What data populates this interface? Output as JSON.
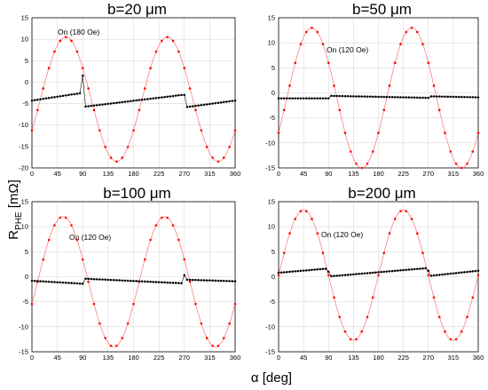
{
  "figure": {
    "ylabel": "R_PHE [mΩ]",
    "ylabel_main": "R",
    "ylabel_sub": "PHE",
    "ylabel_unit": " [mΩ]",
    "xlabel": "α [deg]",
    "colors": {
      "on_series": "#ff0000",
      "on_line": "#ff8080",
      "off_series": "#000000"
    }
  },
  "chart_data": [
    {
      "type": "scatter",
      "title": "b=20 μm",
      "annotation": "On (180 Oe)",
      "xlim": [
        0,
        360
      ],
      "ylim": [
        -20,
        15
      ],
      "xticks": [
        0,
        45,
        90,
        135,
        180,
        225,
        270,
        315,
        360
      ],
      "yticks": [
        -20,
        -15,
        -10,
        -5,
        0,
        5,
        10,
        15
      ],
      "grid": true,
      "series": [
        {
          "role": "on",
          "amp": 14.5,
          "offset": -4,
          "phase_deg": 60
        },
        {
          "role": "off",
          "segments": [
            {
              "x0": 0,
              "x1": 85,
              "y0": -4.3,
              "y1": -2.6
            },
            {
              "x0": 90,
              "x1": 90,
              "y0": 1.5,
              "y1": 1.5
            },
            {
              "x0": 95,
              "x1": 265,
              "y0": -5.7,
              "y1": -3.0
            },
            {
              "x0": 270,
              "x1": 270,
              "y0": -3.0,
              "y1": -3.0
            },
            {
              "x0": 275,
              "x1": 360,
              "y0": -5.8,
              "y1": -4.3
            }
          ]
        }
      ]
    },
    {
      "type": "scatter",
      "title": "b=50 μm",
      "annotation": "On (120 Oe)",
      "xlim": [
        0,
        360
      ],
      "ylim": [
        -15,
        15
      ],
      "xticks": [
        0,
        45,
        90,
        135,
        180,
        225,
        270,
        315,
        360
      ],
      "yticks": [
        -15,
        -10,
        -5,
        0,
        5,
        10,
        15
      ],
      "grid": true,
      "series": [
        {
          "role": "on",
          "amp": 14,
          "offset": -1,
          "phase_deg": 60
        },
        {
          "role": "off",
          "segments": [
            {
              "x0": 0,
              "x1": 90,
              "y0": -1.1,
              "y1": -1.1
            },
            {
              "x0": 95,
              "x1": 270,
              "y0": -0.6,
              "y1": -1.0
            },
            {
              "x0": 275,
              "x1": 360,
              "y0": -0.7,
              "y1": -0.9
            }
          ]
        }
      ]
    },
    {
      "type": "scatter",
      "title": "b=100 μm",
      "annotation": "On (120 Oe)",
      "xlim": [
        0,
        360
      ],
      "ylim": [
        -15,
        15
      ],
      "xticks": [
        0,
        45,
        90,
        135,
        180,
        225,
        270,
        315,
        360
      ],
      "yticks": [
        -15,
        -10,
        -5,
        0,
        5,
        10,
        15
      ],
      "grid": true,
      "series": [
        {
          "role": "on",
          "amp": 13,
          "offset": -1,
          "phase_deg": 55
        },
        {
          "role": "off",
          "segments": [
            {
              "x0": 0,
              "x1": 90,
              "y0": -0.8,
              "y1": -1.4
            },
            {
              "x0": 95,
              "x1": 265,
              "y0": -0.4,
              "y1": -1.3
            },
            {
              "x0": 270,
              "x1": 270,
              "y0": 0.3,
              "y1": 0.3
            },
            {
              "x0": 275,
              "x1": 360,
              "y0": -0.6,
              "y1": -0.9
            }
          ]
        }
      ]
    },
    {
      "type": "scatter",
      "title": "b=200 μm",
      "annotation": "On (120 Oe)",
      "xlim": [
        0,
        360
      ],
      "ylim": [
        -15,
        15
      ],
      "xticks": [
        0,
        45,
        90,
        135,
        180,
        225,
        270,
        315,
        360
      ],
      "yticks": [
        -15,
        -10,
        -5,
        0,
        5,
        10,
        15
      ],
      "grid": true,
      "series": [
        {
          "role": "on",
          "amp": 13,
          "offset": 0.3,
          "phase_deg": 45
        },
        {
          "role": "off",
          "segments": [
            {
              "x0": 0,
              "x1": 85,
              "y0": 0.8,
              "y1": 1.6
            },
            {
              "x0": 90,
              "x1": 90,
              "y0": 1.0,
              "y1": 1.0
            },
            {
              "x0": 95,
              "x1": 265,
              "y0": 0.1,
              "y1": 1.7
            },
            {
              "x0": 270,
              "x1": 270,
              "y0": 1.2,
              "y1": 1.2
            },
            {
              "x0": 275,
              "x1": 360,
              "y0": 0.2,
              "y1": 1.2
            }
          ]
        }
      ]
    }
  ]
}
